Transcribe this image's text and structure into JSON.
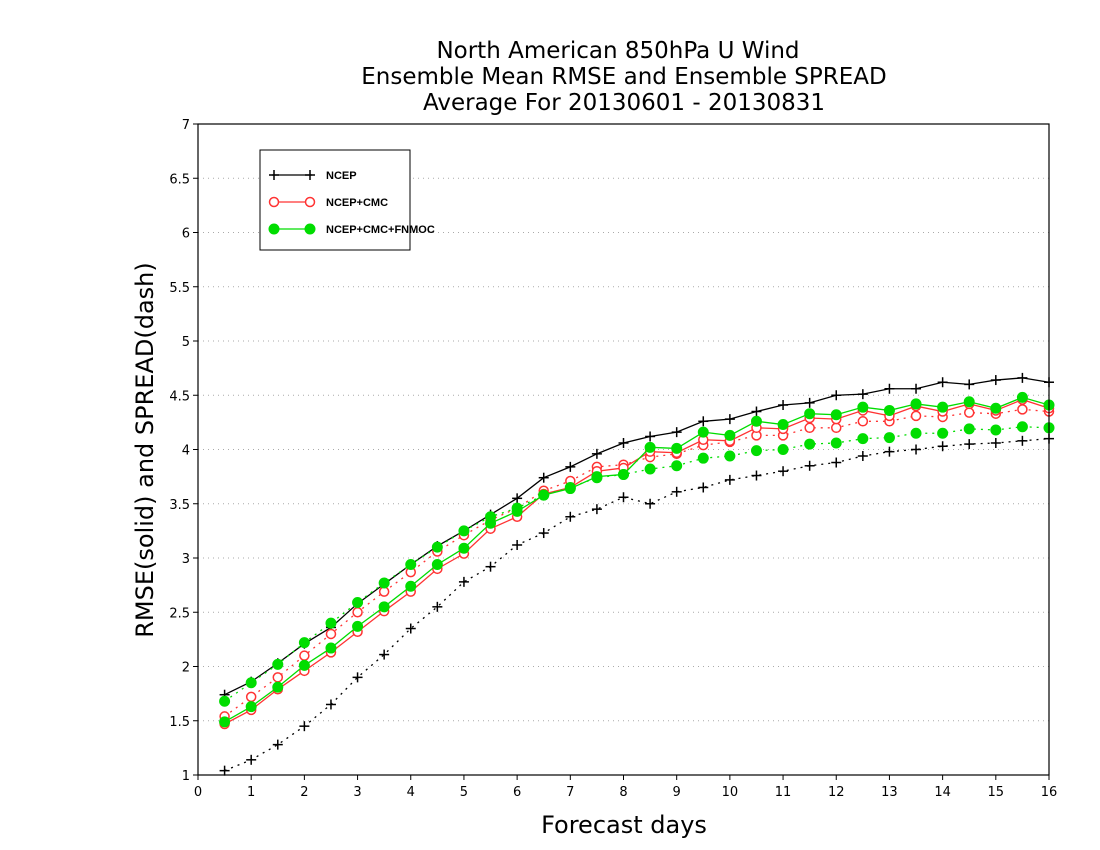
{
  "chart_data": {
    "type": "line",
    "title": [
      "North American 850hPa U Wind",
      "Ensemble Mean RMSE and Ensemble SPREAD",
      "Average For 20130601 - 20130831"
    ],
    "xlabel": "Forecast days",
    "ylabel": "RMSE(solid) and SPREAD(dash)",
    "xlim": [
      0,
      16
    ],
    "ylim": [
      1,
      7
    ],
    "xticks": [
      0,
      1,
      2,
      3,
      4,
      5,
      6,
      7,
      8,
      9,
      10,
      11,
      12,
      13,
      14,
      15,
      16
    ],
    "yticks": [
      1,
      1.5,
      2,
      2.5,
      3,
      3.5,
      4,
      4.5,
      5,
      5.5,
      6,
      6.5,
      7
    ],
    "grid": "horizontal-dotted",
    "legend_position": "top-left",
    "x": [
      0.5,
      1,
      1.5,
      2,
      2.5,
      3,
      3.5,
      4,
      4.5,
      5,
      5.5,
      6,
      6.5,
      7,
      7.5,
      8,
      8.5,
      9,
      9.5,
      10,
      10.5,
      11,
      11.5,
      12,
      12.5,
      13,
      13.5,
      14,
      14.5,
      15,
      15.5,
      16
    ],
    "series": [
      {
        "name": "NCEP",
        "color": "#000000",
        "marker": "plus",
        "rmse": [
          1.74,
          1.86,
          2.03,
          2.21,
          2.36,
          2.58,
          2.76,
          2.94,
          3.11,
          3.25,
          3.4,
          3.55,
          3.74,
          3.84,
          3.96,
          4.06,
          4.12,
          4.16,
          4.26,
          4.28,
          4.35,
          4.41,
          4.43,
          4.5,
          4.51,
          4.56,
          4.56,
          4.62,
          4.6,
          4.64,
          4.66,
          4.62
        ],
        "spread": [
          1.04,
          1.14,
          1.28,
          1.45,
          1.65,
          1.9,
          2.11,
          2.35,
          2.55,
          2.78,
          2.92,
          3.12,
          3.23,
          3.38,
          3.45,
          3.56,
          3.5,
          3.61,
          3.65,
          3.72,
          3.76,
          3.8,
          3.85,
          3.88,
          3.94,
          3.98,
          4.0,
          4.03,
          4.05,
          4.06,
          4.08,
          4.1
        ]
      },
      {
        "name": "NCEP+CMC",
        "color": "#ff3333",
        "marker": "open-circle",
        "rmse": [
          1.47,
          1.6,
          1.79,
          1.96,
          2.13,
          2.32,
          2.51,
          2.69,
          2.9,
          3.04,
          3.27,
          3.38,
          3.59,
          3.65,
          3.8,
          3.83,
          3.98,
          3.97,
          4.09,
          4.08,
          4.2,
          4.19,
          4.29,
          4.28,
          4.36,
          4.31,
          4.4,
          4.35,
          4.42,
          4.36,
          4.46,
          4.38
        ],
        "spread": [
          1.54,
          1.72,
          1.9,
          2.1,
          2.3,
          2.5,
          2.69,
          2.87,
          3.06,
          3.21,
          3.35,
          3.46,
          3.62,
          3.71,
          3.84,
          3.86,
          3.93,
          3.96,
          4.04,
          4.07,
          4.13,
          4.13,
          4.2,
          4.2,
          4.26,
          4.26,
          4.31,
          4.3,
          4.34,
          4.33,
          4.37,
          4.35
        ]
      },
      {
        "name": "NCEP+CMC+FNMOC",
        "color": "#00dd00",
        "marker": "filled-circle",
        "rmse": [
          1.49,
          1.63,
          1.81,
          2.01,
          2.17,
          2.37,
          2.55,
          2.74,
          2.94,
          3.09,
          3.32,
          3.43,
          3.58,
          3.64,
          3.75,
          3.77,
          4.02,
          4.01,
          4.16,
          4.13,
          4.26,
          4.23,
          4.33,
          4.32,
          4.39,
          4.36,
          4.42,
          4.39,
          4.44,
          4.38,
          4.48,
          4.41
        ],
        "spread": [
          1.68,
          1.85,
          2.02,
          2.22,
          2.4,
          2.59,
          2.77,
          2.94,
          3.1,
          3.25,
          3.38,
          3.46,
          3.58,
          3.65,
          3.74,
          3.77,
          3.82,
          3.85,
          3.92,
          3.94,
          3.99,
          4.0,
          4.05,
          4.06,
          4.1,
          4.11,
          4.15,
          4.15,
          4.19,
          4.18,
          4.21,
          4.2
        ]
      }
    ]
  }
}
